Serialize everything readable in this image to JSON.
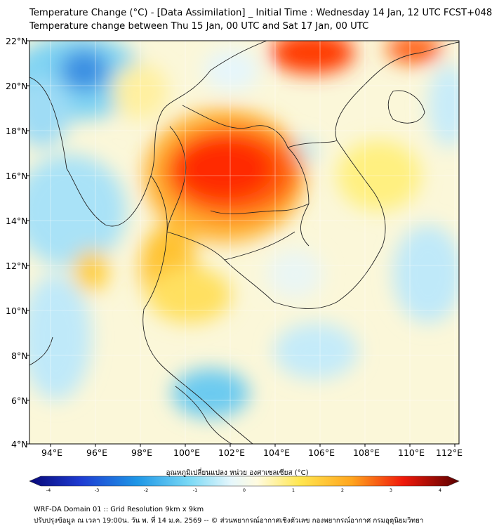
{
  "title": {
    "line1": "Temperature Change (°C) - [Data Assimilation] _ Initial Time : Wednesday 14 Jan, 12 UTC FCST+048",
    "line2": "Temperature change between Thu 15 Jan, 00 UTC and Sat 17 Jan, 00 UTC"
  },
  "axes": {
    "lon_labels": [
      "94°E",
      "96°E",
      "98°E",
      "100°E",
      "102°E",
      "104°E",
      "106°E",
      "108°E",
      "110°E",
      "112°E"
    ],
    "lat_labels": [
      "22°N",
      "20°N",
      "18°N",
      "16°N",
      "14°N",
      "12°N",
      "10°N",
      "8°N",
      "6°N",
      "4°N"
    ]
  },
  "colorbar": {
    "label": "อุณหภูมิเปลี่ยนแปลง หน่วย องศาเซลเซียส (°C)",
    "ticks": [
      "-4",
      "-3",
      "-2",
      "-1",
      "0",
      "1",
      "2",
      "3",
      "4"
    ],
    "min": -4,
    "max": 4
  },
  "colors": {
    "strong_cooling": "#1e5ad2",
    "cooling": "#54c5f0",
    "neutral": "#ffffff",
    "warming": "#ffd21e",
    "strong_warming": "#ff1e00"
  },
  "footer": {
    "line1": "WRF-DA Domain 01 :: Grid Resolution 9km x 9km",
    "line2": "ปรับปรุงข้อมูล ณ เวลา 19:00น. วัน พ. ที่ 14 ม.ค. 2569 -- © ส่วนพยากรณ์อากาศเชิงตัวเลข กองพยากรณ์อากาศ กรมอุตุนิยมวิทยา"
  }
}
